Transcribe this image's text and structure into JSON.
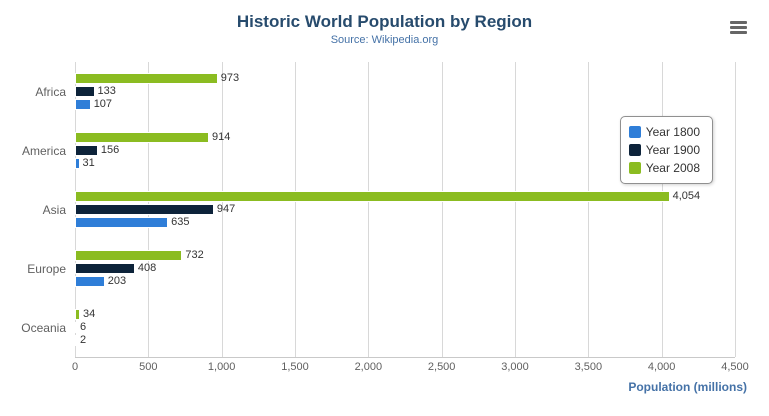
{
  "header": {
    "title": "Historic World Population by Region",
    "subtitle": "Source: Wikipedia.org"
  },
  "menu": {
    "icon": "hamburger-icon"
  },
  "xaxis": {
    "title": "Population (millions)",
    "ticks": [
      "0",
      "500",
      "1,000",
      "1,500",
      "2,000",
      "2,500",
      "3,000",
      "3,500",
      "4,000",
      "4,500"
    ]
  },
  "chart_data": {
    "type": "bar",
    "orientation": "horizontal",
    "title": "Historic World Population by Region",
    "subtitle": "Source: Wikipedia.org",
    "categories": [
      "Africa",
      "America",
      "Asia",
      "Europe",
      "Oceania"
    ],
    "series": [
      {
        "name": "Year 1800",
        "color": "#2f7ed8",
        "values": [
          107,
          31,
          635,
          203,
          2
        ]
      },
      {
        "name": "Year 1900",
        "color": "#0d233a",
        "values": [
          133,
          156,
          947,
          408,
          6
        ]
      },
      {
        "name": "Year 2008",
        "color": "#8bbc21",
        "values": [
          973,
          914,
          4054,
          732,
          34
        ]
      }
    ],
    "xlabel": "Population (millions)",
    "xlim": [
      0,
      4500
    ],
    "grid": true,
    "legend_position": "right",
    "bar_stack_order_top_to_bottom": [
      "Year 2008",
      "Year 1900",
      "Year 1800"
    ]
  }
}
